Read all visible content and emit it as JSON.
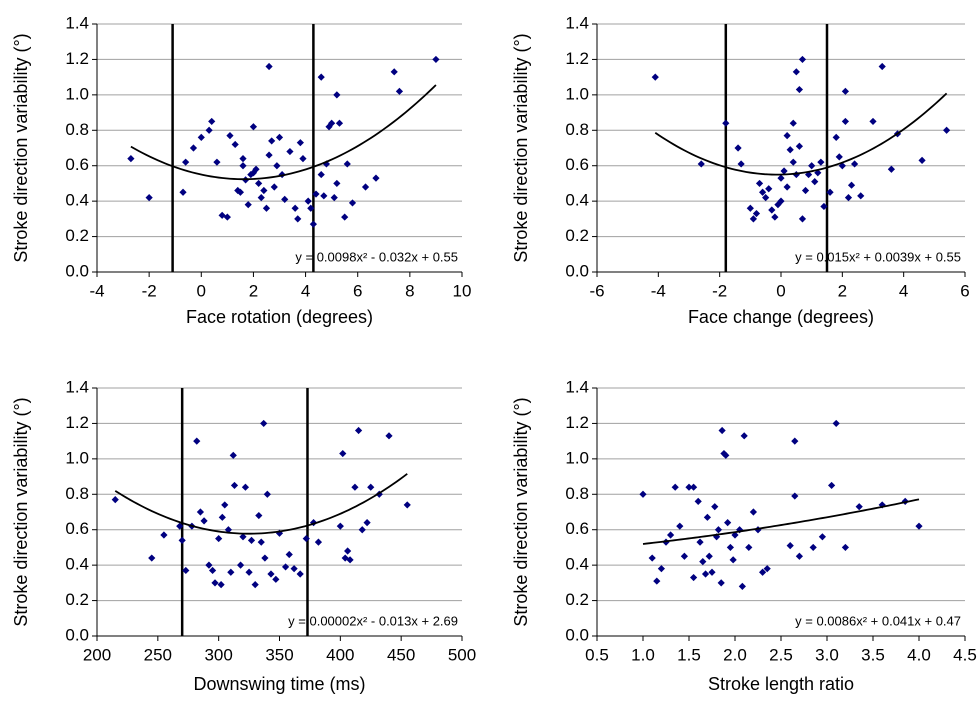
{
  "chart_data": [
    {
      "type": "scatter",
      "color": "#000080",
      "x_label": "Face rotation (degrees)",
      "y_label": "Stroke direction variability (°)",
      "annotation": "y = 0.0098x² - 0.032x + 0.55",
      "fit_coefficients": [
        0.0098,
        -0.032,
        0.55
      ],
      "vlines": [
        -1.1,
        4.3
      ],
      "xlim": [
        -4,
        10
      ],
      "xticks": [
        -4,
        -2,
        0,
        2,
        4,
        6,
        8,
        10
      ],
      "ylim": [
        0,
        1.4
      ],
      "yticks": [
        {
          "value": 0,
          "label": "0.0"
        },
        0.2,
        0.4,
        0.6,
        0.8,
        {
          "value": 1,
          "label": "1.0"
        },
        1.2,
        1.4
      ],
      "grid": true,
      "x": [
        -2.7,
        -2.0,
        -0.7,
        -0.6,
        -0.3,
        0.0,
        0.3,
        0.4,
        0.6,
        0.8,
        1.0,
        1.1,
        1.3,
        1.4,
        1.5,
        1.6,
        1.6,
        1.7,
        1.8,
        1.9,
        2.0,
        2.0,
        2.1,
        2.2,
        2.3,
        2.4,
        2.5,
        2.6,
        2.6,
        2.7,
        2.8,
        2.9,
        3.0,
        3.1,
        3.2,
        3.4,
        3.6,
        3.7,
        3.8,
        3.9,
        4.1,
        4.2,
        4.3,
        4.4,
        4.6,
        4.6,
        4.7,
        4.8,
        4.9,
        5.0,
        5.1,
        5.2,
        5.2,
        5.3,
        5.5,
        5.6,
        5.8,
        6.3,
        6.7,
        7.4,
        7.6,
        9.0
      ],
      "values": [
        0.64,
        0.42,
        0.45,
        0.62,
        0.7,
        0.76,
        0.8,
        0.85,
        0.62,
        0.32,
        0.31,
        0.77,
        0.72,
        0.46,
        0.45,
        0.6,
        0.64,
        0.52,
        0.38,
        0.55,
        0.82,
        0.56,
        0.58,
        0.5,
        0.42,
        0.46,
        0.36,
        1.16,
        0.66,
        0.74,
        0.48,
        0.6,
        0.76,
        0.55,
        0.41,
        0.68,
        0.36,
        0.3,
        0.73,
        0.64,
        0.4,
        0.36,
        0.27,
        0.44,
        1.1,
        0.55,
        0.43,
        0.61,
        0.82,
        0.84,
        0.42,
        1.0,
        0.5,
        0.84,
        0.31,
        0.61,
        0.39,
        0.48,
        0.53,
        1.13,
        1.02,
        1.2
      ]
    },
    {
      "type": "scatter",
      "color": "#000080",
      "x_label": "Face change (degrees)",
      "y_label": "Stroke direction variability (°)",
      "annotation": "y = 0.015x² + 0.0039x + 0.55",
      "fit_coefficients": [
        0.015,
        0.0039,
        0.55
      ],
      "vlines": [
        -1.8,
        1.5
      ],
      "xlim": [
        -6,
        6
      ],
      "xticks": [
        -6,
        -4,
        -2,
        0,
        2,
        4,
        6
      ],
      "ylim": [
        0,
        1.4
      ],
      "yticks": [
        {
          "value": 0,
          "label": "0.0"
        },
        0.2,
        0.4,
        0.6,
        0.8,
        {
          "value": 1,
          "label": "1.0"
        },
        1.2,
        1.4
      ],
      "grid": true,
      "x": [
        -4.1,
        -2.6,
        -1.8,
        -1.4,
        -1.3,
        -1.0,
        -0.9,
        -0.8,
        -0.7,
        -0.6,
        -0.5,
        -0.4,
        -0.3,
        -0.2,
        -0.1,
        0.0,
        0.0,
        0.1,
        0.2,
        0.2,
        0.3,
        0.4,
        0.4,
        0.5,
        0.5,
        0.6,
        0.6,
        0.7,
        0.7,
        0.8,
        0.9,
        1.0,
        1.1,
        1.2,
        1.3,
        1.4,
        1.6,
        1.8,
        1.9,
        2.0,
        2.1,
        2.1,
        2.2,
        2.3,
        2.4,
        2.6,
        3.0,
        3.3,
        3.6,
        3.8,
        4.6,
        5.4
      ],
      "values": [
        1.1,
        0.61,
        0.84,
        0.7,
        0.61,
        0.36,
        0.3,
        0.33,
        0.5,
        0.45,
        0.42,
        0.47,
        0.35,
        0.31,
        0.38,
        0.53,
        0.4,
        0.57,
        0.48,
        0.77,
        0.69,
        0.62,
        0.84,
        1.13,
        0.55,
        1.03,
        0.71,
        1.2,
        0.3,
        0.46,
        0.55,
        0.6,
        0.51,
        0.56,
        0.62,
        0.37,
        0.45,
        0.76,
        0.65,
        0.6,
        1.02,
        0.85,
        0.42,
        0.49,
        0.61,
        0.43,
        0.85,
        1.16,
        0.58,
        0.78,
        0.63,
        0.8
      ]
    },
    {
      "type": "scatter",
      "color": "#000080",
      "x_label": "Downswing time (ms)",
      "y_label": "Stroke direction variability (°)",
      "annotation": "y = 0.00002x² - 0.013x + 2.69",
      "fit_coefficients": [
        2e-05,
        -0.013,
        2.69
      ],
      "vlines": [
        270,
        373
      ],
      "xlim": [
        200,
        500
      ],
      "xticks": [
        200,
        250,
        300,
        350,
        400,
        450,
        500
      ],
      "ylim": [
        0,
        1.4
      ],
      "yticks": [
        {
          "value": 0,
          "label": "0.0"
        },
        0.2,
        0.4,
        0.6,
        0.8,
        {
          "value": 1,
          "label": "1.0"
        },
        1.2,
        1.4
      ],
      "grid": true,
      "x": [
        215,
        245,
        255,
        268,
        270,
        273,
        278,
        282,
        285,
        288,
        292,
        295,
        297,
        300,
        302,
        303,
        305,
        308,
        310,
        312,
        313,
        318,
        320,
        322,
        325,
        327,
        330,
        333,
        335,
        337,
        338,
        340,
        343,
        347,
        350,
        355,
        358,
        362,
        367,
        372,
        378,
        382,
        400,
        402,
        404,
        406,
        408,
        412,
        415,
        418,
        422,
        425,
        432,
        440,
        455
      ],
      "values": [
        0.77,
        0.44,
        0.57,
        0.62,
        0.54,
        0.37,
        0.62,
        1.1,
        0.7,
        0.65,
        0.4,
        0.37,
        0.3,
        0.55,
        0.29,
        0.67,
        0.74,
        0.6,
        0.36,
        1.02,
        0.85,
        0.4,
        0.56,
        0.84,
        0.36,
        0.54,
        0.29,
        0.68,
        0.53,
        1.2,
        0.44,
        0.8,
        0.35,
        0.32,
        0.58,
        0.39,
        0.46,
        0.38,
        0.35,
        0.55,
        0.64,
        0.53,
        0.62,
        1.03,
        0.44,
        0.48,
        0.43,
        0.84,
        1.16,
        0.6,
        0.64,
        0.84,
        0.8,
        1.13,
        0.74
      ]
    },
    {
      "type": "scatter",
      "color": "#000080",
      "x_label": "Stroke length ratio",
      "y_label": "Stroke direction variability (°)",
      "annotation": "y = 0.0086x² + 0.041x + 0.47",
      "fit_coefficients": [
        0.0086,
        0.041,
        0.47
      ],
      "vlines": [],
      "xlim": [
        0.5,
        4.5
      ],
      "xticks": [
        0.5,
        {
          "value": 1,
          "label": "1.0"
        },
        1.5,
        {
          "value": 2,
          "label": "2.0"
        },
        2.5,
        {
          "value": 3,
          "label": "3.0"
        },
        3.5,
        {
          "value": 4,
          "label": "4.0"
        },
        4.5
      ],
      "ylim": [
        0,
        1.4
      ],
      "yticks": [
        {
          "value": 0,
          "label": "0.0"
        },
        0.2,
        0.4,
        0.6,
        0.8,
        {
          "value": 1,
          "label": "1.0"
        },
        1.2,
        1.4
      ],
      "grid": true,
      "x": [
        1.0,
        1.1,
        1.15,
        1.2,
        1.25,
        1.3,
        1.35,
        1.4,
        1.45,
        1.5,
        1.55,
        1.55,
        1.6,
        1.62,
        1.65,
        1.68,
        1.7,
        1.72,
        1.75,
        1.78,
        1.8,
        1.82,
        1.85,
        1.86,
        1.88,
        1.9,
        1.92,
        1.95,
        1.98,
        2.0,
        2.05,
        2.08,
        2.1,
        2.15,
        2.2,
        2.25,
        2.3,
        2.35,
        2.6,
        2.65,
        2.65,
        2.7,
        2.85,
        2.95,
        3.05,
        3.1,
        3.2,
        3.35,
        3.6,
        3.85,
        4.0
      ],
      "values": [
        0.8,
        0.44,
        0.31,
        0.38,
        0.53,
        0.57,
        0.84,
        0.62,
        0.45,
        0.84,
        0.33,
        0.84,
        0.76,
        0.53,
        0.42,
        0.35,
        0.67,
        0.45,
        0.36,
        0.73,
        0.56,
        0.6,
        0.3,
        1.16,
        1.03,
        1.02,
        0.64,
        0.5,
        0.43,
        0.57,
        0.6,
        0.28,
        1.13,
        0.5,
        0.7,
        0.6,
        0.36,
        0.38,
        0.51,
        1.1,
        0.79,
        0.45,
        0.5,
        0.56,
        0.85,
        1.2,
        0.5,
        0.73,
        0.74,
        0.76,
        0.62
      ]
    }
  ]
}
